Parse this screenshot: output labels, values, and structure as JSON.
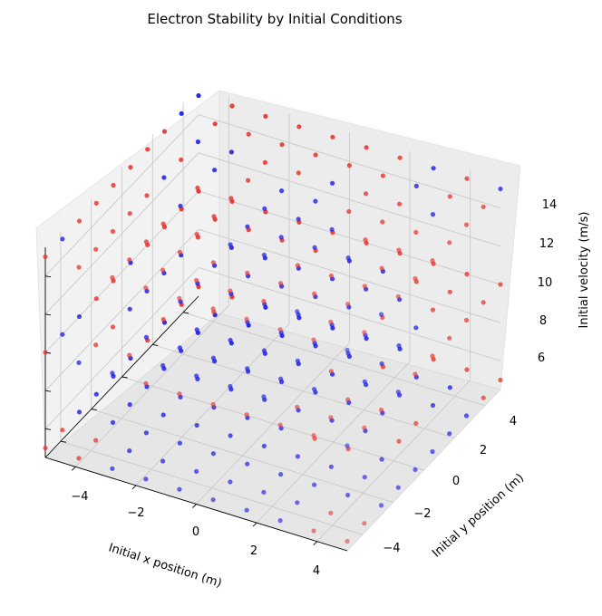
{
  "chart_data": {
    "type": "scatter",
    "projection": "3d",
    "title": "Electron Stability by Initial Conditions",
    "xlabel": "Initial x position (m)",
    "ylabel": "Initial y position (m)",
    "zlabel": "Initial velocity (m/s)",
    "xlim": [
      -5,
      5
    ],
    "ylim": [
      -5,
      5
    ],
    "zlim": [
      4.5,
      15.5
    ],
    "xticks": [
      "−4",
      "−2",
      "0",
      "2",
      "4"
    ],
    "yticks": [
      "−4",
      "−2",
      "0",
      "2",
      "4"
    ],
    "zticks": [
      "6",
      "8",
      "10",
      "12",
      "14"
    ],
    "grid": true,
    "legend": "none",
    "series": [
      {
        "color": "#e8312a"
      },
      {
        "color": "#1a1ae6"
      }
    ],
    "grid_points": {
      "x": [
        -5,
        -3.89,
        -2.78,
        -1.67,
        -0.56,
        0.56,
        1.67,
        2.78,
        3.89,
        5
      ],
      "y": [
        -5,
        -3.89,
        -2.78,
        -1.67,
        -0.56,
        0.56,
        1.67,
        2.78,
        3.89,
        5
      ],
      "z": [
        5,
        10,
        15
      ]
    }
  }
}
